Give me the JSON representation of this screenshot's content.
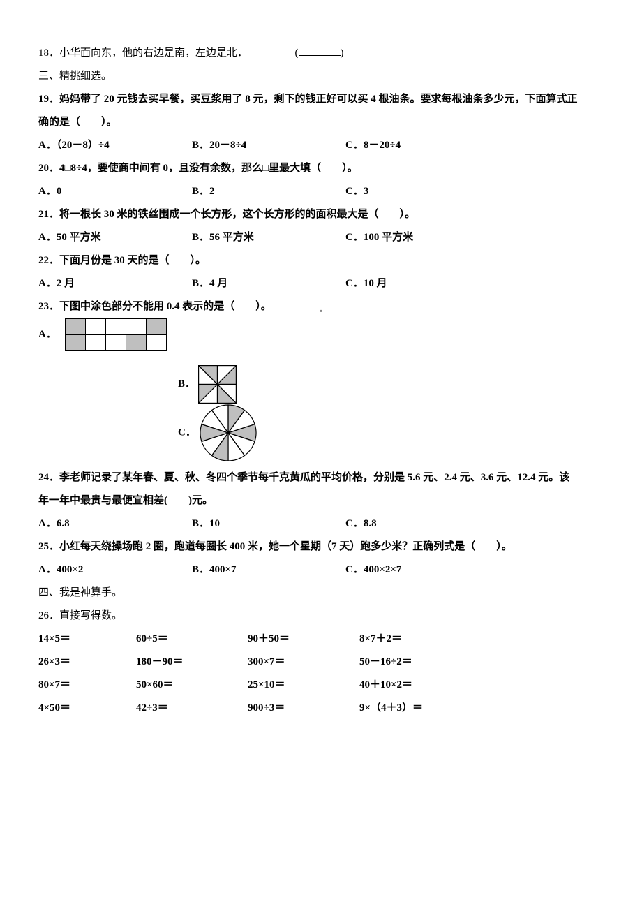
{
  "q18": {
    "text": "18．小华面向东，他的右边是南，左边是北．",
    "paren_open": "(",
    "paren_close": ")"
  },
  "section3": "三、精挑细选。",
  "q19": {
    "stem1": "19．妈妈带了 20 元钱去买早餐，买豆浆用了 8 元，剩下的钱正好可以买 4 根油条。要求每根油条多少元，下面算式正",
    "stem2": "确的是（　　）。",
    "A": "A．（20－8）÷4",
    "B": "B．20－8÷4",
    "C": "C．8－20÷4"
  },
  "q20": {
    "stem": "20．4□8÷4，要使商中间有 0，且没有余数，那么□里最大填（　　）。",
    "A": "A．0",
    "B": "B．2",
    "C": "C．3"
  },
  "q21": {
    "stem": "21．将一根长 30 米的铁丝围成一个长方形，这个长方形的的面积最大是（　　）。",
    "A": "A．50 平方米",
    "B": "B．56 平方米",
    "C": "C．100 平方米"
  },
  "q22": {
    "stem": "22．下面月份是 30 天的是（　　）。",
    "A": "A．2 月",
    "B": "B．4 月",
    "C": "C．10 月"
  },
  "q23": {
    "stem": "23．下图中涂色部分不能用 0.4 表示的是（　　）。",
    "labelA": "A．",
    "labelB": "B．",
    "labelC": "C．",
    "gridA": {
      "rows": [
        [
          true,
          false,
          false,
          false,
          true
        ],
        [
          true,
          false,
          false,
          true,
          false
        ]
      ]
    },
    "svgB": {
      "size": 55,
      "stroke": "#000000",
      "fill": "#bfbfbf"
    },
    "svgC": {
      "size": 84,
      "stroke": "#000000",
      "fill": "#bfbfbf",
      "slices": 10
    }
  },
  "q24": {
    "stem1": "24．李老师记录了某年春、夏、秋、冬四个季节每千克黄瓜的平均价格，分别是 5.6 元、2.4 元、3.6 元、12.4 元。该",
    "stem2": "年一年中最贵与最便宜相差(　　)元。",
    "A": "A．6.8",
    "B": "B．10",
    "C": "C．8.8"
  },
  "q25": {
    "stem": "25．小红每天绕操场跑 2 圈，跑道每圈长 400 米，她一个星期（7 天）跑多少米？正确列式是（　　）。",
    "A": "A．400×2",
    "B": "B．400×7",
    "C": "C．400×2×7"
  },
  "section4": "四、我是神算手。",
  "q26": {
    "stem": "26．直接写得数。",
    "rows": [
      [
        "14×5＝",
        "60÷5＝",
        "90＋50＝",
        "8×7＋2＝"
      ],
      [
        "26×3＝",
        "180－90＝",
        "300×7＝",
        "50－16÷2＝"
      ],
      [
        "80×7＝",
        "50×60＝",
        "25×10＝",
        "40＋10×2＝"
      ],
      [
        "4×50＝",
        "42÷3＝",
        "900÷3＝",
        "9×（4＋3）＝"
      ]
    ]
  },
  "center_marker": "▪"
}
